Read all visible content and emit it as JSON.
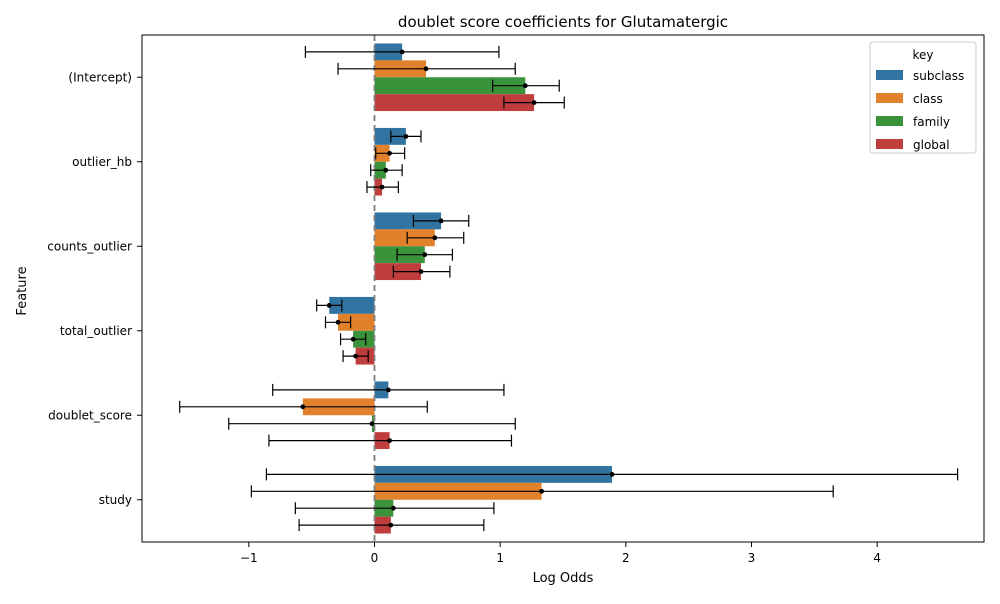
{
  "chart_data": {
    "type": "bar",
    "orientation": "horizontal",
    "title": "doublet score coefficients for Glutamatergic",
    "xlabel": "Log Odds",
    "ylabel": "Feature",
    "xlim": [
      -1.85,
      4.85
    ],
    "xticks": [
      -1,
      0,
      1,
      2,
      3,
      4
    ],
    "xtick_labels": [
      "−1",
      "0",
      "1",
      "2",
      "3",
      "4"
    ],
    "categories": [
      "(Intercept)",
      "outlier_hb",
      "counts_outlier",
      "total_outlier",
      "doublet_score",
      "study"
    ],
    "reference_line": 0,
    "grid": false,
    "legend": {
      "title": "key",
      "position": "top-right"
    },
    "series": [
      {
        "name": "subclass",
        "color": "#3274a1",
        "values": [
          0.22,
          0.25,
          0.53,
          -0.36,
          0.11,
          1.89
        ],
        "err_low": [
          -0.55,
          0.13,
          0.31,
          -0.46,
          -0.81,
          -0.86
        ],
        "err_high": [
          0.99,
          0.37,
          0.75,
          -0.26,
          1.03,
          4.64
        ]
      },
      {
        "name": "class",
        "color": "#e1812c",
        "values": [
          0.41,
          0.12,
          0.48,
          -0.29,
          -0.57,
          1.33
        ],
        "err_low": [
          -0.29,
          0.01,
          0.26,
          -0.39,
          -1.55,
          -0.98
        ],
        "err_high": [
          1.12,
          0.24,
          0.71,
          -0.19,
          0.42,
          3.65
        ]
      },
      {
        "name": "family",
        "color": "#3a923a",
        "values": [
          1.2,
          0.09,
          0.4,
          -0.17,
          -0.02,
          0.15
        ],
        "err_low": [
          0.94,
          -0.03,
          0.18,
          -0.27,
          -1.16,
          -0.63
        ],
        "err_high": [
          1.47,
          0.22,
          0.62,
          -0.07,
          1.12,
          0.95
        ]
      },
      {
        "name": "global",
        "color": "#c03d3e",
        "values": [
          1.27,
          0.06,
          0.37,
          -0.15,
          0.12,
          0.13
        ],
        "err_low": [
          1.03,
          -0.06,
          0.15,
          -0.25,
          -0.84,
          -0.6
        ],
        "err_high": [
          1.51,
          0.19,
          0.6,
          -0.05,
          1.09,
          0.87
        ]
      }
    ]
  }
}
